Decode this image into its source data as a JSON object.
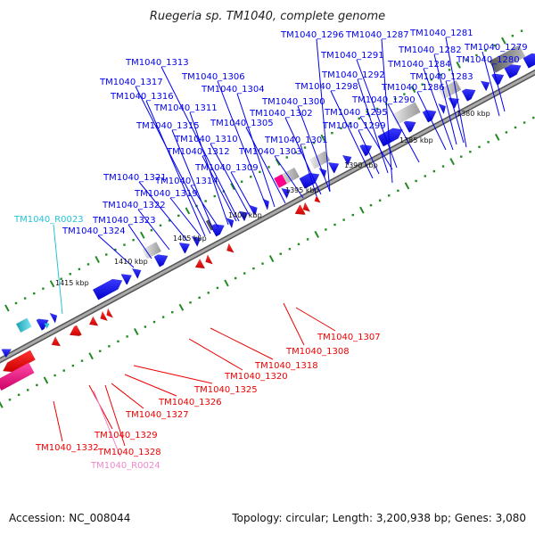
{
  "title": "Ruegeria sp. TM1040, complete genome",
  "footer": {
    "accession": "Accession: NC_008044",
    "summary": "Topology: circular; Length: 3,200,938 bp; Genes: 3,080"
  },
  "colors": {
    "forward_gene": "#0000ee",
    "reverse_gene": "#ee0000",
    "trna_forward": "#22c4d8",
    "trna_reverse": "#ee88cc",
    "tick": "#228b22",
    "backbone": "#888888"
  },
  "ticks": [
    "1380 kbp",
    "1385 kbp",
    "1390 kbp",
    "1395 kbp",
    "1400 kbp",
    "1405 kbp",
    "1410 kbp",
    "1415 kbp"
  ],
  "labels": {
    "forward": [
      "TM1040_1296",
      "TM1040_1287",
      "TM1040_1281",
      "TM1040_1279",
      "TM1040_1282",
      "TM1040_1291",
      "TM1040_1284",
      "TM1040_1280",
      "TM1040_1313",
      "TM1040_1292",
      "TM1040_1283",
      "TM1040_1306",
      "TM1040_1298",
      "TM1040_1317",
      "TM1040_1304",
      "TM1040_1286",
      "TM1040_1316",
      "TM1040_1300",
      "TM1040_1290",
      "TM1040_1311",
      "TM1040_1302",
      "TM1040_1295",
      "TM1040_1305",
      "TM1040_1315",
      "TM1040_1299",
      "TM1040_1310",
      "TM1040_1301",
      "TM1040_1312",
      "TM1040_1303",
      "TM1040_1309",
      "TM1040_1321",
      "TM1040_1314",
      "TM1040_1319",
      "TM1040_1322",
      "TM1040_1323",
      "TM1040_1324"
    ],
    "trna_forward": "TM1040_R0023",
    "reverse": [
      "TM1040_1307",
      "TM1040_1308",
      "TM1040_1318",
      "TM1040_1320",
      "TM1040_1325",
      "TM1040_1326",
      "TM1040_1327",
      "TM1040_1329",
      "TM1040_1332",
      "TM1040_1328"
    ],
    "trna_reverse": "TM1040_R0024"
  }
}
